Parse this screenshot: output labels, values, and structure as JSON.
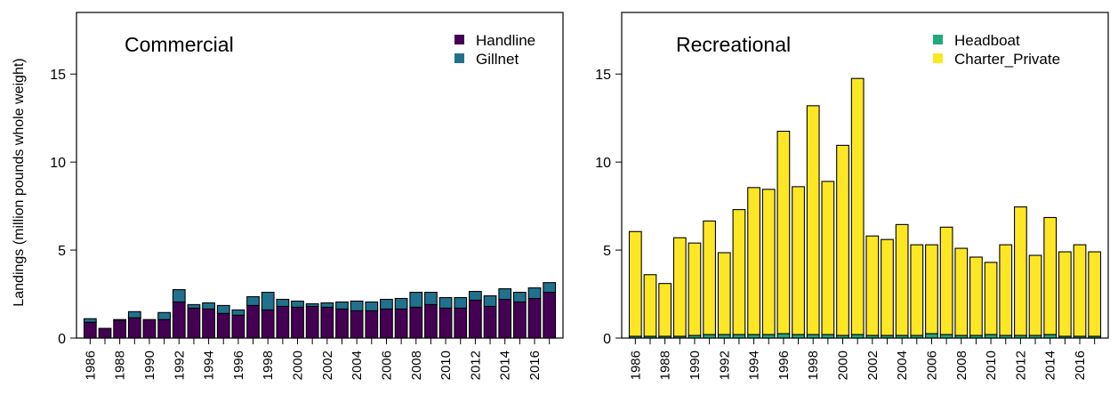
{
  "ylabel": "Landings (million pounds whole weight)",
  "colors": {
    "handline": "#440154",
    "gillnet": "#21718e",
    "headboat": "#21a97c",
    "charter_private": "#fde725"
  },
  "chart_data": [
    {
      "type": "bar",
      "stacked": true,
      "title": "Commercial",
      "ylabel": "Landings (million pounds whole weight)",
      "ylim": [
        0,
        18.5
      ],
      "yticks": [
        0,
        5,
        10,
        15
      ],
      "legend_position": "top-right",
      "categories": [
        1986,
        1987,
        1988,
        1989,
        1990,
        1991,
        1992,
        1993,
        1994,
        1995,
        1996,
        1997,
        1998,
        1999,
        2000,
        2001,
        2002,
        2003,
        2004,
        2005,
        2006,
        2007,
        2008,
        2009,
        2010,
        2011,
        2012,
        2013,
        2014,
        2015,
        2016,
        2017
      ],
      "xtick_labels": [
        "1986",
        "1988",
        "1990",
        "1992",
        "1994",
        "1996",
        "1998",
        "2000",
        "2002",
        "2004",
        "2006",
        "2008",
        "2010",
        "2012",
        "2014",
        "2016"
      ],
      "series": [
        {
          "name": "Handline",
          "color": "#440154",
          "values": [
            0.9,
            0.55,
            1.0,
            1.15,
            1.05,
            1.05,
            2.05,
            1.7,
            1.65,
            1.4,
            1.3,
            1.85,
            1.6,
            1.8,
            1.75,
            1.8,
            1.75,
            1.65,
            1.55,
            1.55,
            1.65,
            1.65,
            1.75,
            1.9,
            1.7,
            1.7,
            2.15,
            1.8,
            2.2,
            2.05,
            2.25,
            2.6
          ]
        },
        {
          "name": "Gillnet",
          "color": "#21718e",
          "values": [
            0.2,
            0.0,
            0.05,
            0.35,
            0.0,
            0.4,
            0.7,
            0.2,
            0.35,
            0.45,
            0.3,
            0.5,
            1.0,
            0.4,
            0.35,
            0.15,
            0.25,
            0.4,
            0.55,
            0.5,
            0.55,
            0.6,
            0.85,
            0.7,
            0.6,
            0.6,
            0.5,
            0.6,
            0.6,
            0.55,
            0.6,
            0.55
          ]
        }
      ]
    },
    {
      "type": "bar",
      "stacked": true,
      "title": "Recreational",
      "ylim": [
        0,
        18.5
      ],
      "yticks": [
        0,
        5,
        10,
        15
      ],
      "legend_position": "top-right",
      "categories": [
        1986,
        1987,
        1988,
        1989,
        1990,
        1991,
        1992,
        1993,
        1994,
        1995,
        1996,
        1997,
        1998,
        1999,
        2000,
        2001,
        2002,
        2003,
        2004,
        2005,
        2006,
        2007,
        2008,
        2009,
        2010,
        2011,
        2012,
        2013,
        2014,
        2015,
        2016,
        2017
      ],
      "xtick_labels": [
        "1986",
        "1988",
        "1990",
        "1992",
        "1994",
        "1996",
        "1998",
        "2000",
        "2002",
        "2004",
        "2006",
        "2008",
        "2010",
        "2012",
        "2014",
        "2016"
      ],
      "series": [
        {
          "name": "Headboat",
          "color": "#21a97c",
          "values": [
            0.1,
            0.1,
            0.1,
            0.1,
            0.15,
            0.2,
            0.2,
            0.2,
            0.2,
            0.2,
            0.25,
            0.2,
            0.2,
            0.2,
            0.15,
            0.2,
            0.15,
            0.15,
            0.15,
            0.15,
            0.25,
            0.2,
            0.15,
            0.15,
            0.2,
            0.15,
            0.15,
            0.15,
            0.2,
            0.1,
            0.1,
            0.1
          ]
        },
        {
          "name": "Charter_Private",
          "color": "#fde725",
          "values": [
            5.95,
            3.5,
            3.0,
            5.6,
            5.25,
            6.45,
            4.65,
            7.1,
            8.35,
            8.25,
            11.5,
            8.4,
            13.0,
            8.7,
            10.8,
            14.55,
            5.65,
            5.45,
            6.3,
            5.15,
            5.05,
            6.1,
            4.95,
            4.45,
            4.1,
            5.15,
            7.3,
            4.55,
            6.65,
            4.8,
            5.2,
            4.8
          ]
        }
      ]
    }
  ]
}
